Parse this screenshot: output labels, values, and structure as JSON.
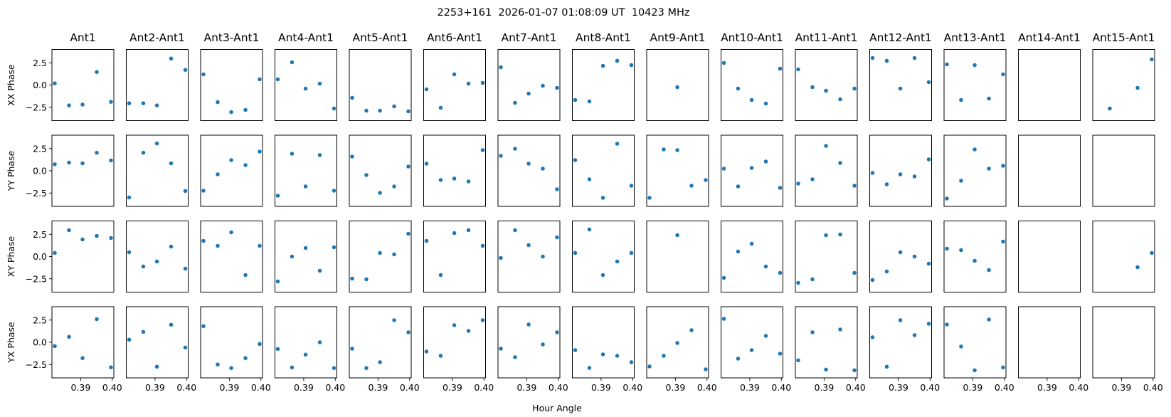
{
  "chart_data": {
    "type": "scatter",
    "title": "2253+161  2026-01-07 01:08:09 UT  10423 MHz",
    "xlabel": "Hour Angle",
    "xlim": [
      0.3809,
      0.4005
    ],
    "ylim": [
      -4,
      4
    ],
    "grid": false,
    "marker_color": "#1f77b4",
    "x": [
      0.3818,
      0.3863,
      0.3906,
      0.3951,
      0.3996
    ],
    "xticks": [
      0.39,
      0.4
    ],
    "xtick_labels": [
      "0.39",
      "0.40"
    ],
    "yticks": [
      2.5,
      0.0,
      -2.5
    ],
    "ytick_labels": [
      "2.5",
      "0.0",
      "−2.5"
    ],
    "columns": [
      "Ant1",
      "Ant2-Ant1",
      "Ant3-Ant1",
      "Ant4-Ant1",
      "Ant5-Ant1",
      "Ant6-Ant1",
      "Ant7-Ant1",
      "Ant8-Ant1",
      "Ant9-Ant1",
      "Ant10-Ant1",
      "Ant11-Ant1",
      "Ant12-Ant1",
      "Ant13-Ant1",
      "Ant14-Ant1",
      "Ant15-Ant1"
    ],
    "rows": [
      {
        "ylabel": "XX Phase",
        "values": [
          [
            0.19,
            -2.29,
            -2.2,
            1.46,
            -1.89
          ],
          [
            -2.05,
            -2.05,
            -2.29,
            2.98,
            1.7
          ],
          [
            1.2,
            -1.92,
            -3.04,
            -2.8,
            0.64
          ],
          [
            0.64,
            2.56,
            -0.4,
            0.16,
            -2.64
          ],
          [
            -1.44,
            -2.88,
            -2.88,
            -2.4,
            -2.96
          ],
          [
            -0.48,
            -2.56,
            1.2,
            0.16,
            0.24
          ],
          [
            2.0,
            -2.0,
            -0.96,
            -0.08,
            -0.32
          ],
          [
            -1.68,
            -1.84,
            2.16,
            2.72,
            2.24
          ],
          [
            null,
            null,
            -0.24,
            null,
            null
          ],
          [
            2.48,
            -0.4,
            -1.68,
            -2.08,
            1.84
          ],
          [
            1.76,
            -0.24,
            -0.64,
            -1.6,
            -0.4
          ],
          [
            3.04,
            2.72,
            -0.4,
            3.04,
            0.32
          ],
          [
            2.32,
            -1.68,
            2.24,
            -1.52,
            1.2
          ],
          [
            null,
            null,
            null,
            null,
            null
          ],
          [
            null,
            -2.64,
            null,
            -0.32,
            2.88
          ]
        ]
      },
      {
        "ylabel": "YY Phase",
        "values": [
          [
            0.73,
            0.92,
            0.84,
            2.03,
            1.16
          ],
          [
            -3.0,
            2.03,
            3.07,
            0.84,
            -2.27
          ],
          [
            -2.24,
            -0.4,
            1.2,
            0.64,
            2.16
          ],
          [
            -2.8,
            1.92,
            -1.76,
            1.76,
            -2.24
          ],
          [
            1.6,
            -0.48,
            -2.48,
            -1.76,
            0.48
          ],
          [
            0.8,
            -1.04,
            -0.88,
            -1.2,
            2.32
          ],
          [
            1.68,
            2.48,
            0.8,
            0.24,
            -2.08
          ],
          [
            1.2,
            -0.96,
            -3.04,
            3.04,
            -1.68
          ],
          [
            -3.04,
            2.4,
            2.32,
            -1.68,
            -1.04
          ],
          [
            0.24,
            -1.76,
            0.32,
            1.04,
            -1.92
          ],
          [
            -1.44,
            -0.96,
            2.8,
            0.88,
            -1.68
          ],
          [
            -0.24,
            -1.52,
            -0.4,
            -0.64,
            1.28
          ],
          [
            -3.12,
            -1.12,
            2.4,
            0.24,
            0.56
          ],
          [
            null,
            null,
            null,
            null,
            null
          ],
          [
            null,
            null,
            null,
            null,
            null
          ]
        ]
      },
      {
        "ylabel": "XY Phase",
        "values": [
          [
            0.4,
            2.96,
            1.92,
            2.32,
            2.08
          ],
          [
            0.48,
            -1.12,
            -0.56,
            1.12,
            -1.36
          ],
          [
            1.76,
            1.2,
            2.72,
            -2.08,
            1.2
          ],
          [
            -2.8,
            0.0,
            0.96,
            -1.6,
            1.04
          ],
          [
            -2.48,
            -2.56,
            0.4,
            0.24,
            2.56
          ],
          [
            1.76,
            -2.08,
            2.64,
            2.96,
            1.2
          ],
          [
            -0.16,
            2.96,
            1.28,
            0.0,
            2.16
          ],
          [
            0.4,
            3.04,
            -2.08,
            -0.56,
            0.4
          ],
          [
            null,
            null,
            2.4,
            null,
            null
          ],
          [
            -2.4,
            0.56,
            1.44,
            -1.12,
            -1.84
          ],
          [
            -2.96,
            -2.56,
            2.4,
            2.48,
            -1.84
          ],
          [
            -2.64,
            -1.68,
            0.48,
            0.0,
            -0.8
          ],
          [
            0.88,
            0.72,
            -0.48,
            -1.52,
            1.68
          ],
          [
            null,
            null,
            null,
            null,
            null
          ],
          [
            null,
            null,
            null,
            -1.2,
            0.4
          ]
        ]
      },
      {
        "ylabel": "YX Phase",
        "values": [
          [
            -0.43,
            0.61,
            -1.78,
            2.6,
            -2.82
          ],
          [
            0.29,
            1.17,
            -2.74,
            1.97,
            -0.59
          ],
          [
            1.81,
            -2.5,
            -2.9,
            -1.78,
            -0.19
          ],
          [
            -0.75,
            -2.83,
            -1.39,
            0.0,
            -2.9
          ],
          [
            -0.72,
            -2.9,
            -2.24,
            2.48,
            1.12
          ],
          [
            -1.04,
            -1.52,
            1.92,
            1.28,
            2.48
          ],
          [
            -0.72,
            -1.68,
            2.0,
            -0.24,
            1.12
          ],
          [
            -0.88,
            -2.88,
            -1.36,
            -1.52,
            -2.24
          ],
          [
            -2.72,
            -1.52,
            -0.08,
            1.36,
            -3.04
          ],
          [
            2.64,
            -1.84,
            -0.88,
            0.72,
            -1.28
          ],
          [
            -2.03,
            1.12,
            -3.07,
            1.44,
            -3.15
          ],
          [
            0.56,
            -2.75,
            2.48,
            0.8,
            2.08
          ],
          [
            2.0,
            -0.48,
            -3.15,
            2.56,
            -2.83
          ],
          [
            null,
            null,
            null,
            null,
            null
          ],
          [
            null,
            null,
            null,
            null,
            null
          ]
        ]
      }
    ]
  }
}
